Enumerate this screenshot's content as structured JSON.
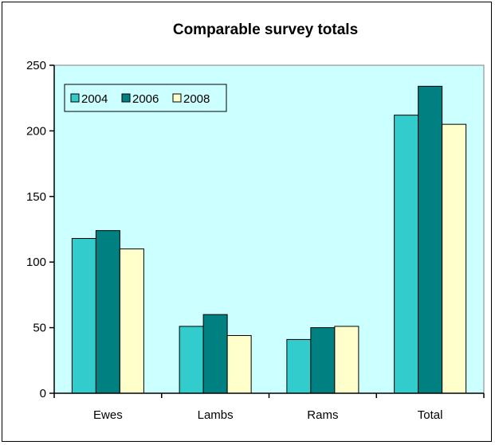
{
  "chart_data": {
    "type": "bar",
    "title": "Comparable survey totals",
    "xlabel": "",
    "ylabel": "",
    "categories": [
      "Ewes",
      "Lambs",
      "Rams",
      "Total"
    ],
    "series": [
      {
        "name": "2004",
        "color": "#33CCCC",
        "values": [
          118,
          51,
          41,
          212
        ]
      },
      {
        "name": "2006",
        "color": "#008080",
        "values": [
          124,
          60,
          50,
          234
        ]
      },
      {
        "name": "2008",
        "color": "#FFFFCC",
        "values": [
          110,
          44,
          51,
          205
        ]
      }
    ],
    "ylim": [
      0,
      250
    ],
    "yticks": [
      "0",
      "50",
      "100",
      "150",
      "200",
      "250"
    ],
    "grid": false,
    "legend_position": "top-left",
    "plot_background": "#CCFFFF",
    "bar_outline": "#000000"
  }
}
